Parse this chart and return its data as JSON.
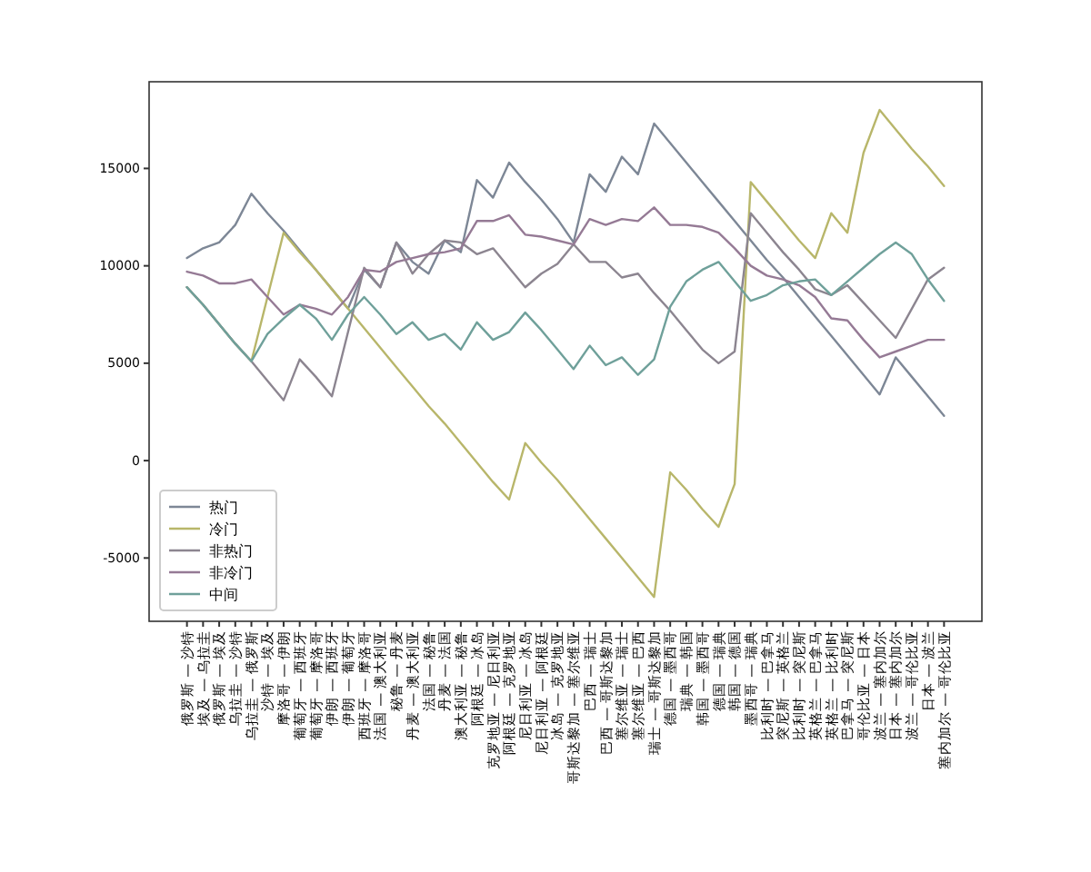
{
  "chart_data": {
    "type": "line",
    "categories": [
      "俄罗斯 — 沙特",
      "埃及 — 乌拉圭",
      "俄罗斯 — 埃及",
      "乌拉圭 — 沙特",
      "乌拉圭 — 俄罗斯",
      "沙特 — 埃及",
      "摩洛哥 — 伊朗",
      "葡萄牙 — 西班牙",
      "葡萄牙 — 摩洛哥",
      "伊朗 — 西班牙",
      "伊朗 — 葡萄牙",
      "西班牙 — 摩洛哥",
      "法国 — 澳大利亚",
      "秘鲁 — 丹麦",
      "丹麦 — 澳大利亚",
      "法国 — 秘鲁",
      "丹麦 — 法国",
      "澳大利亚 — 秘鲁",
      "阿根廷 — 冰岛",
      "克罗地亚 — 尼日利亚",
      "阿根廷 — 克罗地亚",
      "尼日利亚 — 冰岛",
      "尼日利亚 — 阿根廷",
      "冰岛 — 克罗地亚",
      "哥斯达黎加 — 塞尔维亚",
      "巴西 — 瑞士",
      "巴西 — 哥斯达黎加",
      "塞尔维亚 — 瑞士",
      "塞尔维亚 — 巴西",
      "瑞士 — 哥斯达黎加",
      "德国 — 墨西哥",
      "瑞典 — 韩国",
      "韩国 — 墨西哥",
      "德国 — 瑞典",
      "韩国 — 德国",
      "墨西哥 — 瑞典",
      "比利时 — 巴拿马",
      "突尼斯 — 英格兰",
      "比利时 — 突尼斯",
      "英格兰 — 巴拿马",
      "英格兰 — 比利时",
      "巴拿马 — 突尼斯",
      "哥伦比亚 — 日本",
      "波兰 — 塞内加尔",
      "日本 — 塞内加尔",
      "波兰 — 哥伦比亚",
      "日本 — 波兰",
      "塞内加尔 — 哥伦比亚"
    ],
    "series": [
      {
        "name": "热门",
        "color": "#7d8796",
        "values": [
          10400,
          10900,
          11200,
          12100,
          13700,
          12700,
          11800,
          10800,
          9800,
          8800,
          7800,
          9800,
          8900,
          11200,
          10200,
          9600,
          11300,
          10700,
          14400,
          13500,
          15300,
          14300,
          13400,
          12400,
          11200,
          14700,
          13800,
          15600,
          14700,
          17300,
          16300,
          15300,
          14300,
          13300,
          12300,
          11300,
          10300,
          9400,
          8400,
          7400,
          6400,
          5400,
          4400,
          3400,
          5300,
          4300,
          3300,
          2300
        ]
      },
      {
        "name": "冷门",
        "color": "#b8b66a",
        "values": [
          8900,
          8000,
          7000,
          6000,
          5100,
          8400,
          11700,
          10700,
          9800,
          8800,
          7800,
          6800,
          5800,
          4800,
          3800,
          2800,
          1900,
          900,
          -100,
          -1100,
          -2000,
          900,
          -100,
          -1000,
          -2000,
          -3000,
          -4000,
          -5000,
          -6000,
          -7000,
          -600,
          -1500,
          -2500,
          -3400,
          -1200,
          14300,
          13300,
          12300,
          11300,
          10400,
          12700,
          11700,
          15800,
          18000,
          17000,
          16000,
          15100,
          14100
        ]
      },
      {
        "name": "非热门",
        "color": "#8c8590",
        "values": [
          8900,
          8000,
          7000,
          6000,
          5100,
          4100,
          3100,
          5200,
          4300,
          3300,
          6600,
          9900,
          8900,
          11200,
          9600,
          10600,
          11300,
          11200,
          10600,
          10900,
          9900,
          8900,
          9600,
          10100,
          11100,
          10200,
          10200,
          9400,
          9600,
          8600,
          7700,
          6700,
          5700,
          5000,
          5600,
          12700,
          11700,
          10700,
          9800,
          8800,
          8500,
          9000,
          8100,
          7200,
          6300,
          7800,
          9300,
          9900
        ]
      },
      {
        "name": "非冷门",
        "color": "#957a95",
        "values": [
          9700,
          9500,
          9100,
          9100,
          9300,
          8400,
          7500,
          8000,
          7800,
          7500,
          8400,
          9800,
          9700,
          10200,
          10400,
          10600,
          10700,
          10900,
          12300,
          12300,
          12600,
          11600,
          11500,
          11300,
          11100,
          12400,
          12100,
          12400,
          12300,
          13000,
          12100,
          12100,
          12000,
          11700,
          10900,
          10000,
          9500,
          9300,
          9000,
          8400,
          7300,
          7200,
          6200,
          5300,
          5600,
          5900,
          6200,
          6200
        ]
      },
      {
        "name": "中间",
        "color": "#6fa09a",
        "values": [
          8900,
          8000,
          7000,
          6000,
          5100,
          6500,
          7300,
          8000,
          7300,
          6200,
          7500,
          8400,
          7500,
          6500,
          7100,
          6200,
          6500,
          5700,
          7100,
          6200,
          6600,
          7600,
          6700,
          5700,
          4700,
          5900,
          4900,
          5300,
          4400,
          5200,
          7900,
          9200,
          9800,
          10200,
          9200,
          8200,
          8500,
          9000,
          9200,
          9300,
          8500,
          9200,
          9900,
          10600,
          11200,
          10600,
          9300,
          8200
        ]
      }
    ],
    "ylim": [
      -8250,
      19450
    ],
    "yticks": [
      -5000,
      0,
      5000,
      10000,
      15000
    ],
    "legend": "bottom left",
    "grid": false,
    "marker": "none",
    "line_style": "solid"
  }
}
